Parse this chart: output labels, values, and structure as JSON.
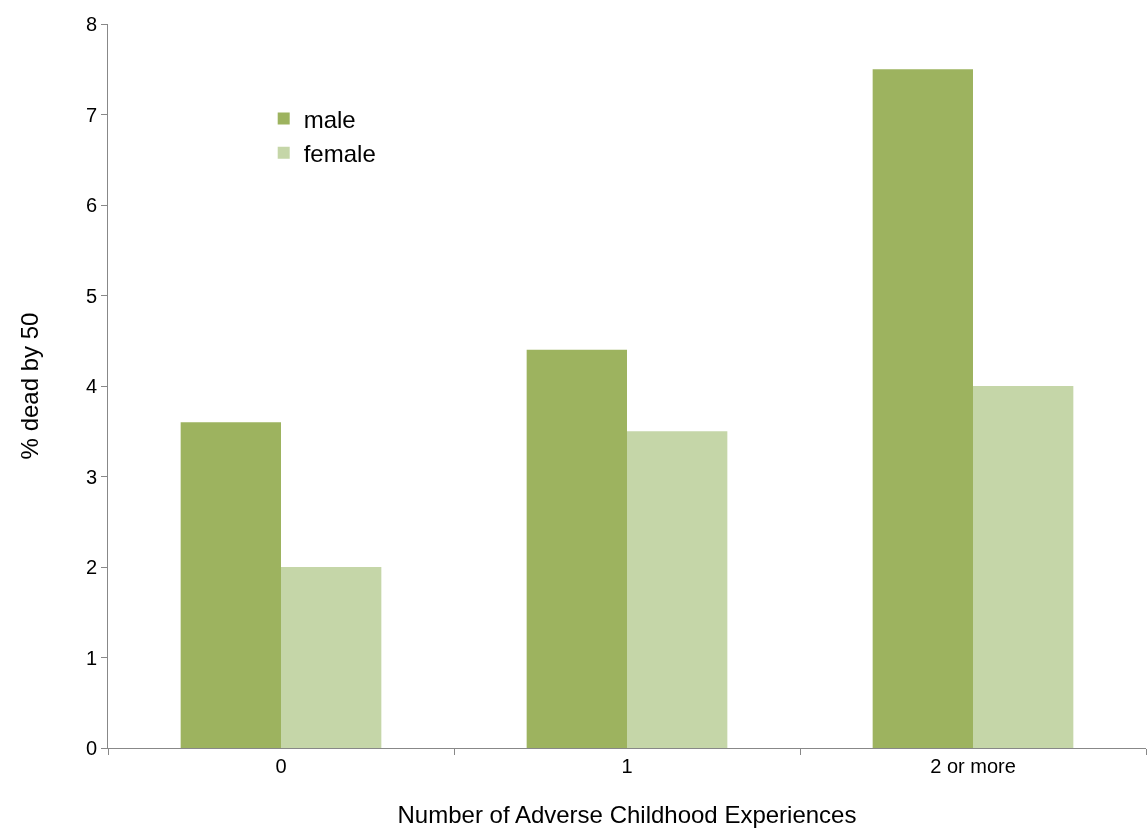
{
  "chart_data": {
    "type": "bar",
    "xlabel": "Number of Adverse Childhood Experiences",
    "ylabel": "% dead by 50",
    "categories": [
      "0",
      "1",
      "2 or more"
    ],
    "series": [
      {
        "name": "male",
        "color": "#9db35f",
        "values": [
          3.6,
          4.4,
          7.5
        ]
      },
      {
        "name": "female",
        "color": "#c5d6a8",
        "values": [
          2.0,
          3.5,
          4.0
        ]
      }
    ],
    "ylim": [
      0,
      8
    ],
    "yticks": [
      0,
      1,
      2,
      3,
      4,
      5,
      6,
      7,
      8
    ],
    "legend": "top left"
  }
}
